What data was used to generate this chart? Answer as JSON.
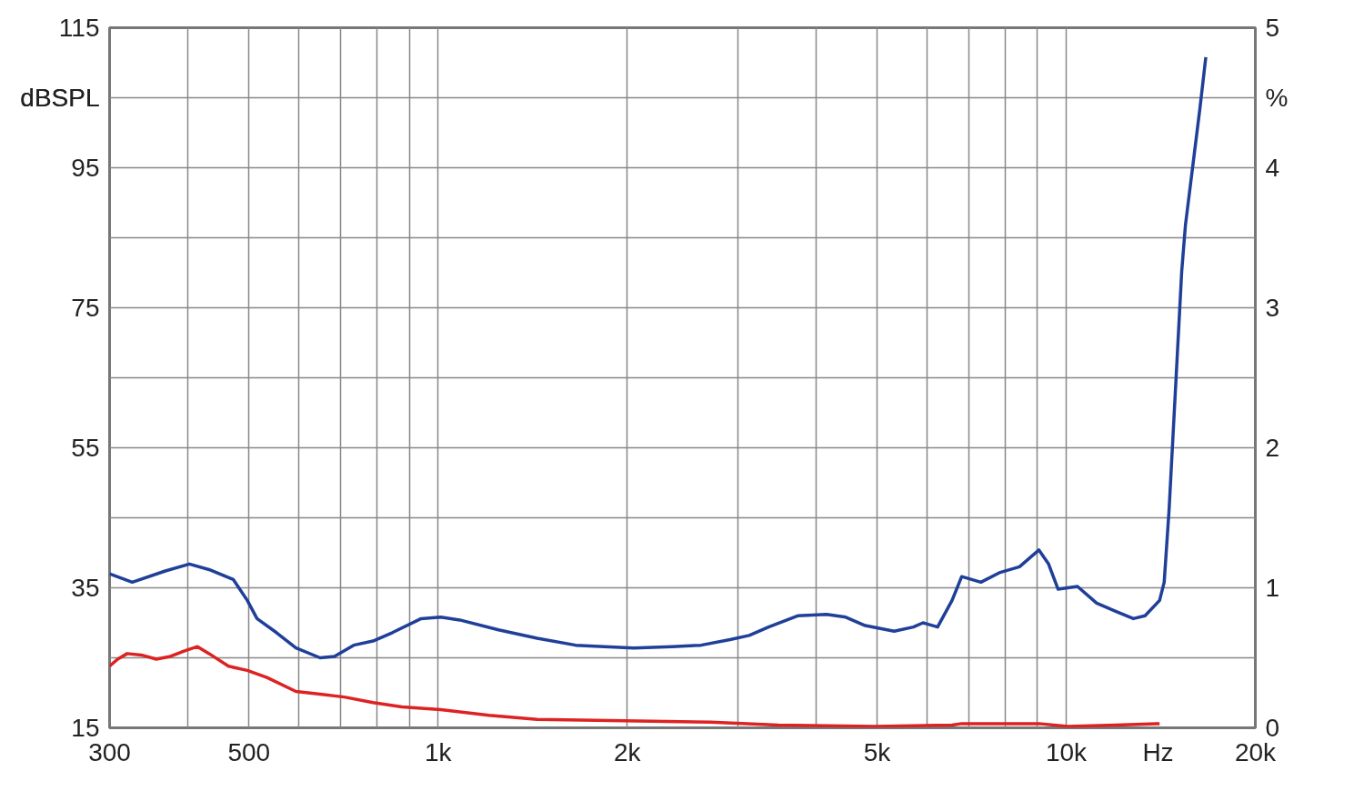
{
  "chart_data": {
    "type": "line",
    "xlabel": "Hz",
    "ylabel": "dBSPL",
    "y2label": "%",
    "log": "x",
    "grid": true,
    "xlim": [
      300,
      20000
    ],
    "xticks": [
      300,
      {
        "value": 400,
        "label": null
      },
      500,
      {
        "value": 600,
        "label": null
      },
      {
        "value": 700,
        "label": null
      },
      {
        "value": 800,
        "label": null
      },
      {
        "value": 900,
        "label": null
      },
      {
        "value": 1000,
        "label": "1k"
      },
      {
        "value": 2000,
        "label": "2k"
      },
      {
        "value": 3000,
        "label": null
      },
      {
        "value": 4000,
        "label": null
      },
      {
        "value": 5000,
        "label": "5k"
      },
      {
        "value": 6000,
        "label": null
      },
      {
        "value": 7000,
        "label": null
      },
      {
        "value": 8000,
        "label": null
      },
      {
        "value": 9000,
        "label": null
      },
      {
        "value": 10000,
        "label": "10k"
      },
      {
        "value": 20000,
        "label": "20k"
      }
    ],
    "ylim": [
      15,
      115
    ],
    "yticks": [
      15,
      {
        "value": 25,
        "label": null
      },
      35,
      {
        "value": 45,
        "label": null
      },
      55,
      {
        "value": 65,
        "label": null
      },
      75,
      {
        "value": 85,
        "label": null
      },
      95,
      {
        "value": 105,
        "label": null
      },
      115
    ],
    "y2lim": [
      0,
      5
    ],
    "y2ticks": [
      0,
      1,
      2,
      3,
      4,
      5
    ],
    "series": [
      {
        "color": "#1f3f99",
        "axis": "y2",
        "x": [
          300,
          326,
          368,
          402,
          432,
          472,
          497,
          515,
          553,
          594,
          649,
          684,
          734,
          788,
          846,
          940,
          1010,
          1083,
          1248,
          1438,
          1656,
          2048,
          2359,
          2622,
          2916,
          3129,
          3359,
          3736,
          4155,
          4457,
          4786,
          5322,
          5711,
          5916,
          6240,
          6580,
          6817,
          7314,
          7850,
          8426,
          9048,
          9373,
          9707,
          10420,
          11180,
          12010,
          12790,
          13350,
          14080,
          14320,
          14580,
          14950,
          15270,
          15480,
          15930,
          16330,
          16680
        ],
        "values": [
          1.1,
          1.04,
          1.12,
          1.17,
          1.13,
          1.06,
          0.91,
          0.78,
          0.68,
          0.57,
          0.5,
          0.51,
          0.59,
          0.62,
          0.68,
          0.78,
          0.79,
          0.77,
          0.7,
          0.64,
          0.59,
          0.57,
          0.58,
          0.59,
          0.63,
          0.66,
          0.72,
          0.8,
          0.81,
          0.79,
          0.73,
          0.69,
          0.72,
          0.75,
          0.72,
          0.91,
          1.08,
          1.04,
          1.11,
          1.15,
          1.27,
          1.17,
          0.99,
          1.01,
          0.89,
          0.83,
          0.78,
          0.8,
          0.91,
          1.04,
          1.56,
          2.48,
          3.26,
          3.59,
          4.04,
          4.43,
          4.79
        ]
      },
      {
        "color": "#dd2222",
        "axis": "y2",
        "x": [
          300,
          309,
          320,
          337,
          356,
          375,
          395,
          414,
          432,
          464,
          497,
          534,
          594,
          649,
          709,
          788,
          876,
          1010,
          1205,
          1438,
          1976,
          2717,
          3480,
          4959,
          6580,
          6817,
          9048,
          10060,
          12010,
          14080
        ],
        "values": [
          0.44,
          0.49,
          0.53,
          0.52,
          0.49,
          0.51,
          0.55,
          0.58,
          0.53,
          0.44,
          0.41,
          0.36,
          0.26,
          0.24,
          0.22,
          0.18,
          0.15,
          0.13,
          0.09,
          0.06,
          0.05,
          0.04,
          0.02,
          0.01,
          0.02,
          0.03,
          0.03,
          0.01,
          0.02,
          0.03
        ]
      }
    ]
  }
}
